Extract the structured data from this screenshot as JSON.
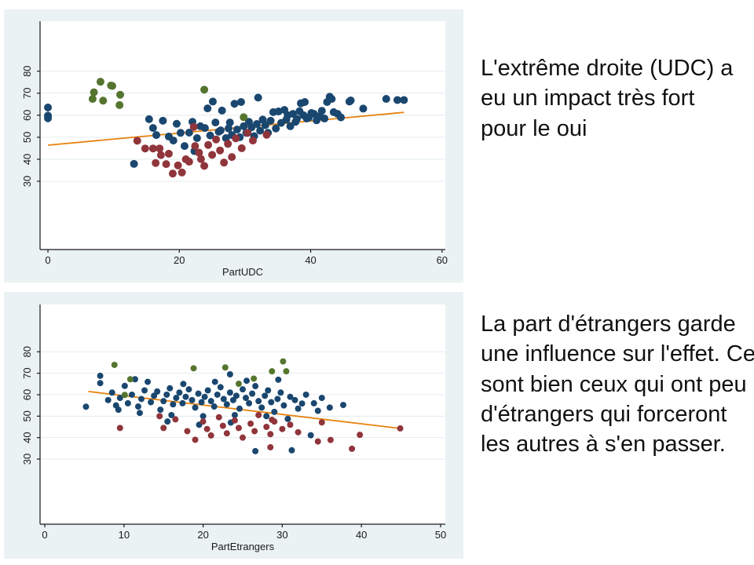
{
  "slide": {
    "background": "#ffffff",
    "text_color": "#111111"
  },
  "captions": {
    "top": "L'extrême droite (UDC) a eu un impact très fort pour le oui",
    "bottom": "La part d'étrangers garde une influence sur l'effet. Ce sont bien ceux qui ont peu d'étrangers qui forceront les autres à s'en passer."
  },
  "chart_data": [
    {
      "type": "scatter",
      "title": "",
      "xlabel": "PartUDC",
      "ylabel": "",
      "panel_background": "#eaf2f3",
      "plot_background": "#ffffff",
      "gridline_color": "#e3ecef",
      "axis_color": "#1a1a1a",
      "tick_label_color": "#1a1a1a",
      "grid": "horizontal-only",
      "legend": "none",
      "xticks": [
        0,
        20,
        40,
        60
      ],
      "yticks": [
        30,
        40,
        50,
        60,
        70,
        80
      ],
      "x_domain": [
        -1.2,
        60.5
      ],
      "y_domain": [
        -1.0,
        102.7
      ],
      "xlim_ticks": [
        0,
        60
      ],
      "ylim_ticks": [
        30,
        80
      ],
      "marker_radius": 5,
      "series": [
        {
          "name": "group-navy",
          "color": "#1a476f",
          "points": [
            [
              0,
              63.5
            ],
            [
              0,
              59.8
            ],
            [
              0,
              58.6
            ],
            [
              13.1,
              37.9
            ],
            [
              15.4,
              58.2
            ],
            [
              16,
              54.2
            ],
            [
              16.5,
              51
            ],
            [
              17.5,
              57.5
            ],
            [
              18.4,
              50.3
            ],
            [
              19.1,
              48.5
            ],
            [
              19.6,
              56.1
            ],
            [
              20.2,
              52
            ],
            [
              20.8,
              46
            ],
            [
              21.5,
              52.1
            ],
            [
              22,
              57
            ],
            [
              22.3,
              43.7
            ],
            [
              22.7,
              49.6
            ],
            [
              23.2,
              55
            ],
            [
              23.9,
              54.2
            ],
            [
              24.3,
              63.1
            ],
            [
              24.7,
              50.8
            ],
            [
              25.1,
              66.2
            ],
            [
              25.5,
              56.7
            ],
            [
              26,
              52.5
            ],
            [
              26.3,
              53.1
            ],
            [
              26.5,
              62.1
            ],
            [
              27.1,
              49.6
            ],
            [
              27.5,
              54
            ],
            [
              27.7,
              56.7
            ],
            [
              28,
              51
            ],
            [
              28.4,
              65.2
            ],
            [
              28.8,
              53.5
            ],
            [
              29.2,
              50
            ],
            [
              29.4,
              66
            ],
            [
              29.8,
              55
            ],
            [
              30.2,
              52
            ],
            [
              30.6,
              57
            ],
            [
              31,
              54.5
            ],
            [
              31.4,
              50.5
            ],
            [
              31.8,
              56
            ],
            [
              32,
              68
            ],
            [
              32.3,
              53
            ],
            [
              32.7,
              58
            ],
            [
              33.1,
              55.5
            ],
            [
              33.5,
              52
            ],
            [
              33.9,
              57.5
            ],
            [
              34.3,
              61.4
            ],
            [
              34.7,
              54
            ],
            [
              35.1,
              61.7
            ],
            [
              35.5,
              56.5
            ],
            [
              36,
              62.4
            ],
            [
              36.3,
              58
            ],
            [
              36.5,
              60
            ],
            [
              36.9,
              55
            ],
            [
              37.3,
              60.6
            ],
            [
              37.7,
              57
            ],
            [
              37.9,
              58.3
            ],
            [
              38.3,
              61.8
            ],
            [
              38.5,
              65.4
            ],
            [
              38.9,
              60
            ],
            [
              39.1,
              66
            ],
            [
              39.4,
              58.5
            ],
            [
              39.7,
              58.9
            ],
            [
              40.1,
              61
            ],
            [
              40.5,
              60.6
            ],
            [
              40.9,
              57.7
            ],
            [
              41.3,
              59.5
            ],
            [
              41.7,
              62
            ],
            [
              42.1,
              58.5
            ],
            [
              42.5,
              66
            ],
            [
              42.9,
              68.4
            ],
            [
              43.2,
              67.4
            ],
            [
              43.5,
              61.4
            ],
            [
              44.1,
              60.6
            ],
            [
              44.6,
              59
            ],
            [
              45.9,
              66.2
            ],
            [
              46.1,
              66.7
            ],
            [
              48,
              63
            ],
            [
              51.5,
              67.4
            ],
            [
              53.2,
              66.9
            ],
            [
              54.2,
              66.9
            ]
          ]
        },
        {
          "name": "group-maroon",
          "color": "#90353b",
          "points": [
            [
              13.6,
              48.4
            ],
            [
              14.8,
              44.9
            ],
            [
              16,
              44.9
            ],
            [
              16.4,
              38.3
            ],
            [
              17,
              44.9
            ],
            [
              17.2,
              41.9
            ],
            [
              18,
              37.8
            ],
            [
              18.4,
              42.5
            ],
            [
              19,
              33.5
            ],
            [
              19.8,
              37.2
            ],
            [
              20.4,
              34
            ],
            [
              21,
              40
            ],
            [
              21.5,
              38.9
            ],
            [
              22.2,
              54.7
            ],
            [
              22.4,
              46
            ],
            [
              23,
              43
            ],
            [
              23.3,
              40.1
            ],
            [
              23.8,
              37
            ],
            [
              24.4,
              46.5
            ],
            [
              25,
              42
            ],
            [
              25.6,
              49
            ],
            [
              26.2,
              44
            ],
            [
              26.8,
              38.5
            ],
            [
              27.4,
              47
            ],
            [
              28,
              41
            ],
            [
              28.6,
              49.5
            ],
            [
              29.5,
              45
            ],
            [
              30.4,
              52
            ],
            [
              31.2,
              48.5
            ],
            [
              33.3,
              51.1
            ]
          ]
        },
        {
          "name": "group-olive",
          "color": "#55752f",
          "points": [
            [
              6.8,
              67.4
            ],
            [
              7,
              70.4
            ],
            [
              8,
              75.2
            ],
            [
              8.4,
              66.6
            ],
            [
              9.6,
              73.5
            ],
            [
              9.8,
              73.3
            ],
            [
              11,
              69.3
            ],
            [
              10.9,
              64.6
            ],
            [
              23.8,
              71.6
            ],
            [
              29.8,
              59.1
            ]
          ]
        }
      ],
      "fit_line": {
        "name": "linear-fit",
        "color": "#e8820e",
        "from": [
          0,
          46.4
        ],
        "to": [
          54.2,
          61.3
        ]
      }
    },
    {
      "type": "scatter",
      "title": "",
      "xlabel": "PartEtrangers",
      "ylabel": "",
      "panel_background": "#eaf2f3",
      "plot_background": "#ffffff",
      "gridline_color": "#e3ecef",
      "axis_color": "#1a1a1a",
      "tick_label_color": "#1a1a1a",
      "grid": "horizontal-only",
      "legend": "none",
      "xticks": [
        0,
        10,
        20,
        30,
        40,
        50
      ],
      "yticks": [
        30,
        40,
        50,
        60,
        70,
        80
      ],
      "x_domain": [
        -0.6,
        50.6
      ],
      "y_domain": [
        -0.35,
        102.05
      ],
      "xlim_ticks": [
        0,
        50
      ],
      "ylim_ticks": [
        30,
        80
      ],
      "marker_radius": 4,
      "series": [
        {
          "name": "group-navy",
          "color": "#1a476f",
          "points": [
            [
              5.2,
              54.4
            ],
            [
              7,
              68.8
            ],
            [
              7,
              65.4
            ],
            [
              8,
              57.5
            ],
            [
              8.5,
              61
            ],
            [
              9,
              55
            ],
            [
              9.3,
              53
            ],
            [
              9.5,
              58.5
            ],
            [
              10.1,
              64.1
            ],
            [
              10.5,
              56
            ],
            [
              11,
              60
            ],
            [
              11.4,
              67.2
            ],
            [
              11.8,
              54.5
            ],
            [
              12,
              51.5
            ],
            [
              12.2,
              58
            ],
            [
              12.6,
              62
            ],
            [
              13,
              66
            ],
            [
              13.4,
              56.5
            ],
            [
              13.8,
              59.5
            ],
            [
              14.2,
              61.5
            ],
            [
              14.6,
              53
            ],
            [
              15,
              57
            ],
            [
              15.4,
              60
            ],
            [
              15.5,
              47.5
            ],
            [
              15.8,
              63
            ],
            [
              16,
              50.5
            ],
            [
              16.2,
              55.5
            ],
            [
              16.6,
              58.5
            ],
            [
              17,
              61
            ],
            [
              17.4,
              56
            ],
            [
              17.5,
              65
            ],
            [
              17.8,
              59
            ],
            [
              18.2,
              62.5
            ],
            [
              18.6,
              57.5
            ],
            [
              19,
              54
            ],
            [
              19.4,
              60.5
            ],
            [
              19.5,
              46
            ],
            [
              19.8,
              56.5
            ],
            [
              20,
              50
            ],
            [
              20.2,
              59
            ],
            [
              20.6,
              62
            ],
            [
              21,
              57
            ],
            [
              21.4,
              54.5
            ],
            [
              21.5,
              66
            ],
            [
              21.8,
              60
            ],
            [
              22.2,
              63.5
            ],
            [
              22.6,
              58
            ],
            [
              23,
              55.5
            ],
            [
              23.4,
              61
            ],
            [
              23.4,
              69.5
            ],
            [
              23.5,
              47
            ],
            [
              23.8,
              57.5
            ],
            [
              24,
              50.5
            ],
            [
              24.2,
              59.5
            ],
            [
              24.6,
              53.5
            ],
            [
              25,
              62.5
            ],
            [
              25.4,
              58.5
            ],
            [
              25.5,
              66.5
            ],
            [
              25.8,
              56
            ],
            [
              26.2,
              60.5
            ],
            [
              26.6,
              64
            ],
            [
              26.6,
              33.7
            ],
            [
              27,
              57
            ],
            [
              27.4,
              54
            ],
            [
              27.8,
              59.5
            ],
            [
              28,
              50
            ],
            [
              28.2,
              62
            ],
            [
              28.6,
              56.5
            ],
            [
              29,
              52
            ],
            [
              29.4,
              58
            ],
            [
              29.5,
              67
            ],
            [
              29.8,
              61
            ],
            [
              30.2,
              55
            ],
            [
              30.7,
              48.7
            ],
            [
              31,
              59
            ],
            [
              31.2,
              34.1
            ],
            [
              31.6,
              57.5
            ],
            [
              32,
              53.5
            ],
            [
              32.5,
              55.9
            ],
            [
              33,
              60
            ],
            [
              33.6,
              41.1
            ],
            [
              34,
              56
            ],
            [
              34.5,
              52.5
            ],
            [
              35,
              58.5
            ],
            [
              36,
              54
            ],
            [
              37.7,
              55.2
            ]
          ]
        },
        {
          "name": "group-maroon",
          "color": "#90353b",
          "points": [
            [
              9.5,
              44.5
            ],
            [
              14.5,
              50
            ],
            [
              15,
              44.5
            ],
            [
              16.5,
              48.5
            ],
            [
              18,
              43
            ],
            [
              19,
              39
            ],
            [
              20,
              47.5
            ],
            [
              20.5,
              44
            ],
            [
              21,
              41
            ],
            [
              22,
              49.5
            ],
            [
              22.5,
              45.5
            ],
            [
              23,
              42
            ],
            [
              24,
              48
            ],
            [
              24.5,
              44.5
            ],
            [
              25,
              40
            ],
            [
              26,
              46.5
            ],
            [
              26.5,
              43
            ],
            [
              27,
              50.5
            ],
            [
              28,
              45
            ],
            [
              28.5,
              41.6
            ],
            [
              28.7,
              48.3
            ],
            [
              28.5,
              35.5
            ],
            [
              29,
              47.5
            ],
            [
              30,
              44
            ],
            [
              31,
              46
            ],
            [
              32,
              42.5
            ],
            [
              34.5,
              38.2
            ],
            [
              35,
              47.1
            ],
            [
              36.1,
              38.9
            ],
            [
              38.8,
              34.8
            ],
            [
              39.8,
              41.3
            ],
            [
              44.9,
              44.3
            ]
          ]
        },
        {
          "name": "group-olive",
          "color": "#55752f",
          "points": [
            [
              8.8,
              73.9
            ],
            [
              10.8,
              67.2
            ],
            [
              10.1,
              59.9
            ],
            [
              18.8,
              72.3
            ],
            [
              22.8,
              72.7
            ],
            [
              24.5,
              65.1
            ],
            [
              26.4,
              67.5
            ],
            [
              28.7,
              70.9
            ],
            [
              30.1,
              75.5
            ],
            [
              30.5,
              70.9
            ]
          ]
        }
      ],
      "fit_line": {
        "name": "linear-fit",
        "color": "#e8820e",
        "from": [
          5.5,
          61.5
        ],
        "to": [
          44.9,
          44.3
        ]
      }
    }
  ]
}
